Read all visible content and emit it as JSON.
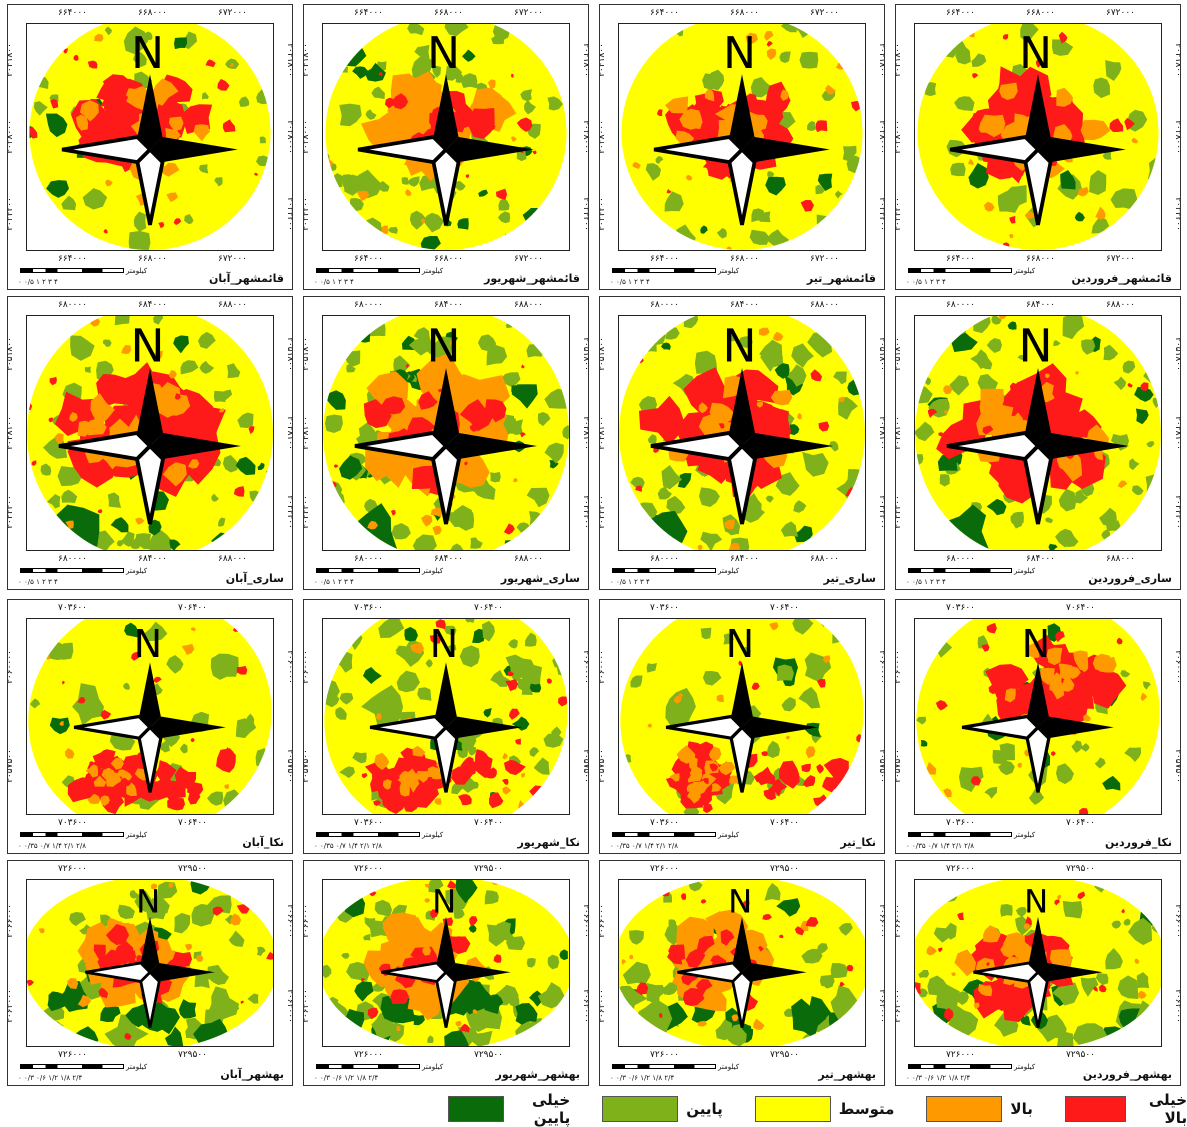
{
  "legend": [
    {
      "label": "خیلی بالا",
      "color": "#ff1a1a"
    },
    {
      "label": "بالا",
      "color": "#ff9900"
    },
    {
      "label": "متوسط",
      "color": "#ffff00"
    },
    {
      "label": "پایین",
      "color": "#7fb21a"
    },
    {
      "label": "خیلی پایین",
      "color": "#0a6b0a"
    }
  ],
  "scale_unit": "کیلومتر",
  "rows": [
    {
      "city": "qaemshahr",
      "top_ticks": [
        "۶۶۴۰۰۰",
        "۶۶۸۰۰۰",
        "۶۷۲۰۰۰"
      ],
      "bottom_ticks": [
        "۶۶۴۰۰۰",
        "۶۶۸۰۰۰",
        "۶۷۲۰۰۰"
      ],
      "side_ticks": [
        "۴۰۴۱۸۰۰",
        "۴۰۳۸۰۰۰",
        "۴۰۳۴۲۰۰"
      ],
      "scale_labels": "۰ ۰/۵ ۱   ۲   ۳   ۴",
      "panels": [
        "قائمشهر_آبان",
        "قائمشهر_شهریور",
        "قائمشهر_تیر",
        "قائمشهر_فروردین"
      ]
    },
    {
      "city": "sari",
      "top_ticks": [
        "۶۸۰۰۰۰",
        "۶۸۴۰۰۰",
        "۶۸۸۰۰۰"
      ],
      "bottom_ticks": [
        "۶۸۰۰۰۰",
        "۶۸۴۰۰۰",
        "۶۸۸۰۰۰"
      ],
      "side_ticks": [
        "۴۰۵۱۸۰۰",
        "۴۰۴۸۱۰۰",
        "۴۰۴۴۴۰۰"
      ],
      "scale_labels": "۰ ۰/۵ ۱   ۲   ۳   ۴",
      "panels": [
        "ساری_آبان",
        "ساری_شهریور",
        "ساری_تیر",
        "ساری_فروردین"
      ]
    },
    {
      "city": "neka",
      "top_ticks": [
        "۷۰۳۶۰۰",
        "۷۰۶۴۰۰"
      ],
      "bottom_ticks": [
        "۷۰۳۶۰۰",
        "۷۰۶۴۰۰"
      ],
      "side_ticks": [
        "۴۰۶۰۰۰۰",
        "۴۰۵۷۵۰۰"
      ],
      "scale_labels": "۰ ۰/۳۵ ۰/۷  ۱/۴  ۲/۱  ۲/۸",
      "panels": [
        "نکا_آبان",
        "نکا_شهریور",
        "نکا_تیر",
        "نکا_فروردین"
      ]
    },
    {
      "city": "behshahr",
      "top_ticks": [
        "۷۲۶۰۰۰",
        "۷۲۹۵۰۰"
      ],
      "bottom_ticks": [
        "۷۲۶۰۰۰",
        "۷۲۹۵۰۰"
      ],
      "side_ticks": [
        "۴۰۶۶۰۰۰",
        "۴۰۶۳۰۰۰"
      ],
      "scale_labels": "۰ ۰/۳ ۰/۶  ۱/۲  ۱/۸  ۲/۴",
      "panels": [
        "بهشهر_آبان",
        "بهشهر_شهریور",
        "بهشهر_تیر",
        "بهشهر_فروردین"
      ]
    }
  ]
}
